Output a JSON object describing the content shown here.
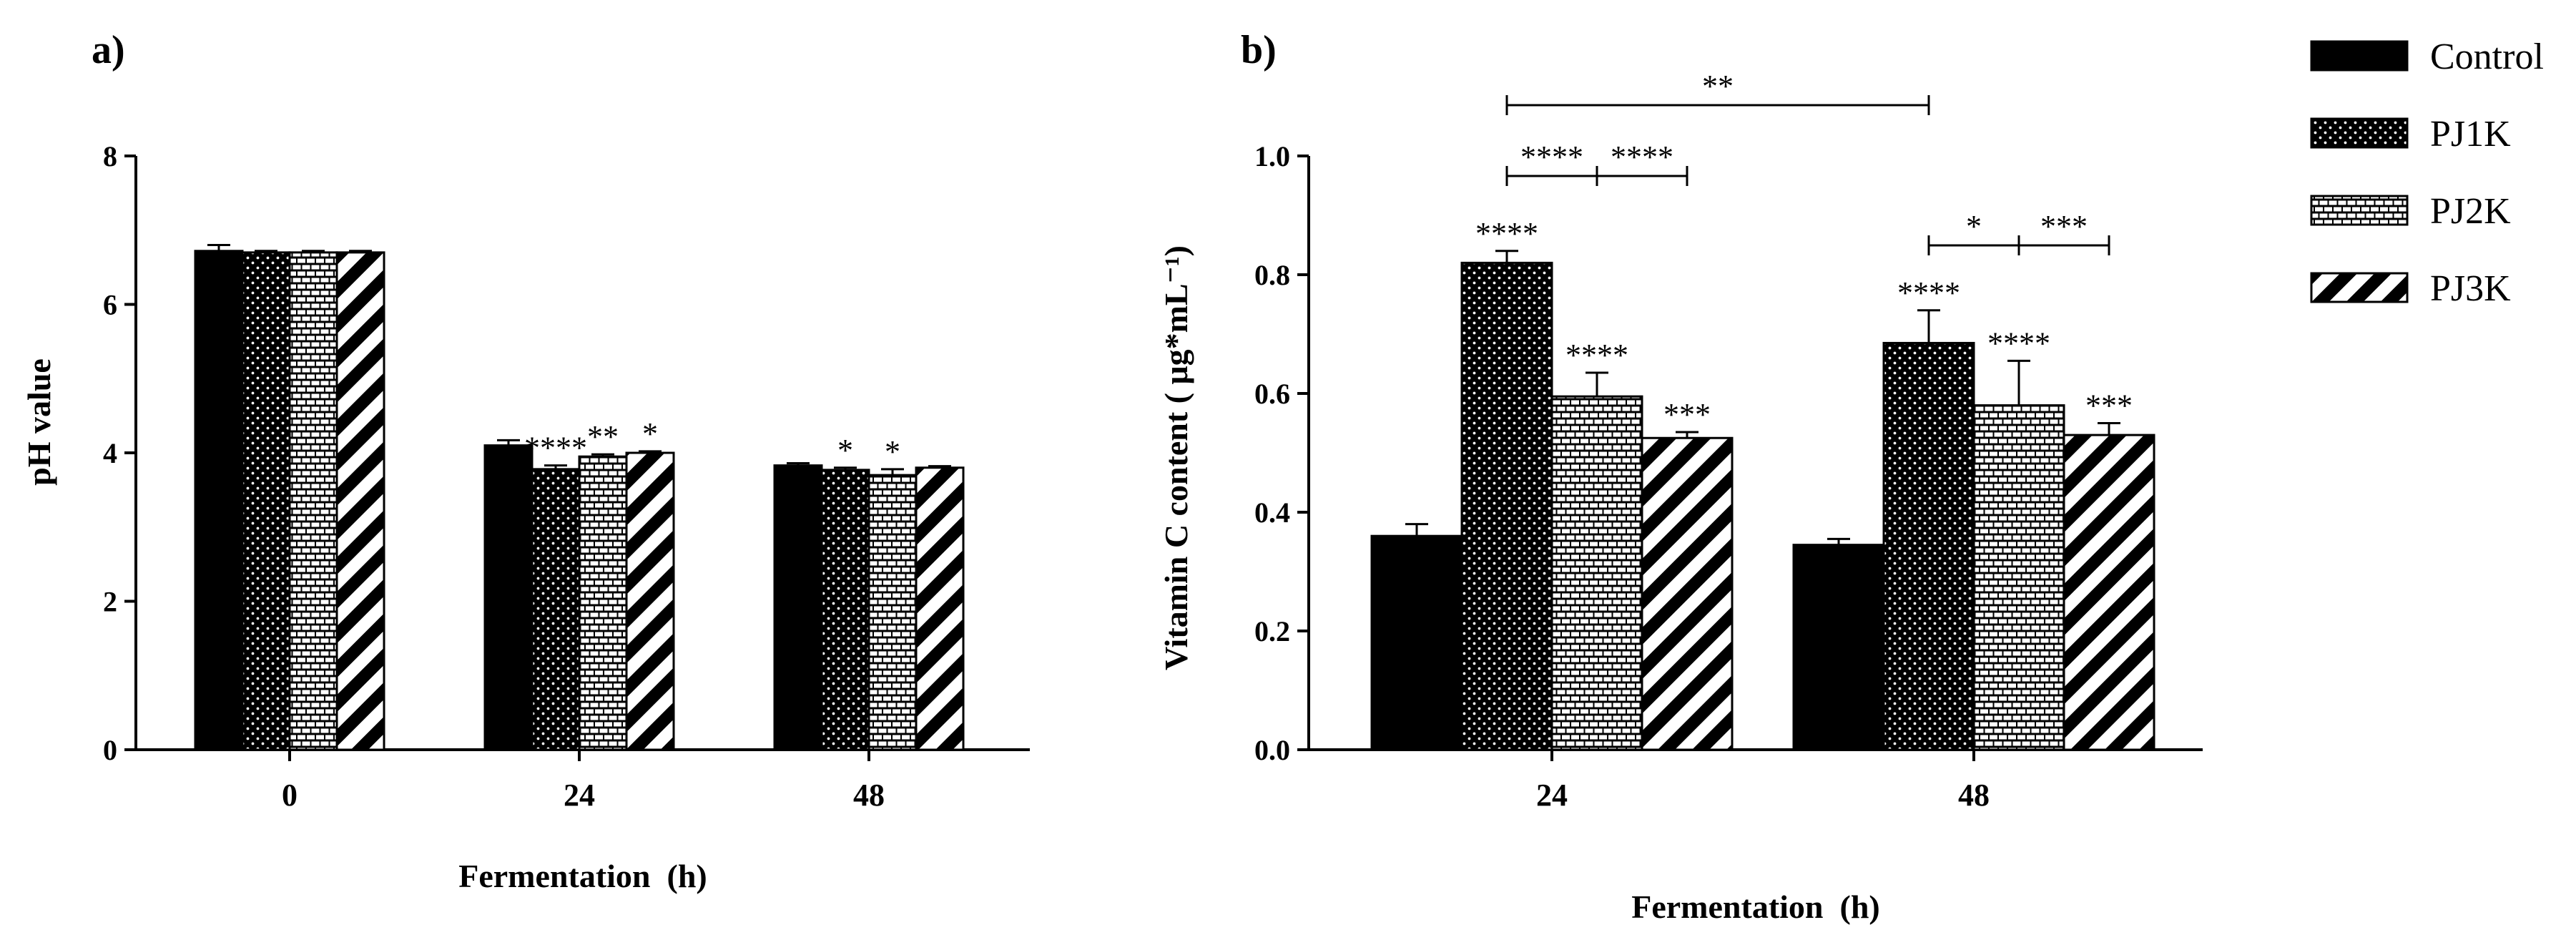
{
  "chart_data": [
    {
      "panel_label": "a)",
      "type": "bar",
      "categories": [
        "0",
        "24",
        "48"
      ],
      "xlabel": "Fermentation  (h)",
      "ylabel": "pH value",
      "ylim": [
        0,
        8
      ],
      "yticks": [
        "0",
        "2",
        "4",
        "6",
        "8"
      ],
      "series": [
        {
          "name": "Control",
          "values": [
            6.72,
            4.1,
            3.83
          ],
          "errors": [
            0.08,
            0.07,
            0.03
          ],
          "stars": [
            "",
            "",
            ""
          ]
        },
        {
          "name": "PJ1K",
          "values": [
            6.7,
            3.78,
            3.77
          ],
          "errors": [
            0.02,
            0.05,
            0.03
          ],
          "stars": [
            "",
            "****",
            "*"
          ]
        },
        {
          "name": "PJ2K",
          "values": [
            6.7,
            3.95,
            3.7
          ],
          "errors": [
            0.02,
            0.03,
            0.08
          ],
          "stars": [
            "",
            "**",
            "*"
          ]
        },
        {
          "name": "PJ3K",
          "values": [
            6.7,
            4.0,
            3.8
          ],
          "errors": [
            0.02,
            0.02,
            0.02
          ],
          "stars": [
            "",
            "*",
            ""
          ]
        }
      ]
    },
    {
      "panel_label": "b)",
      "type": "bar",
      "categories": [
        "24",
        "48"
      ],
      "xlabel": "Fermentation  (h)",
      "ylabel": "Vitamin C content ( μg*mL⁻¹)",
      "ylim": [
        0,
        1.0
      ],
      "yticks": [
        "0.0",
        "0.2",
        "0.4",
        "0.6",
        "0.8",
        "1.0"
      ],
      "series": [
        {
          "name": "Control",
          "values": [
            0.36,
            0.345
          ],
          "errors": [
            0.02,
            0.01
          ],
          "stars": [
            "",
            ""
          ]
        },
        {
          "name": "PJ1K",
          "values": [
            0.82,
            0.685
          ],
          "errors": [
            0.02,
            0.055
          ],
          "stars": [
            "****",
            "****"
          ]
        },
        {
          "name": "PJ2K",
          "values": [
            0.595,
            0.58
          ],
          "errors": [
            0.04,
            0.075
          ],
          "stars": [
            "****",
            "****"
          ]
        },
        {
          "name": "PJ3K",
          "values": [
            0.525,
            0.53
          ],
          "errors": [
            0.01,
            0.02
          ],
          "stars": [
            "***",
            "***"
          ]
        }
      ],
      "comparisons": [
        {
          "from": [
            "24",
            "PJ1K"
          ],
          "to": [
            "48",
            "PJ1K"
          ],
          "label": "**"
        },
        {
          "from": [
            "24",
            "PJ1K"
          ],
          "to": [
            "24",
            "PJ2K"
          ],
          "label": "****"
        },
        {
          "from": [
            "24",
            "PJ2K"
          ],
          "to": [
            "24",
            "PJ3K"
          ],
          "label": "****"
        },
        {
          "from": [
            "48",
            "PJ1K"
          ],
          "to": [
            "48",
            "PJ2K"
          ],
          "label": "*"
        },
        {
          "from": [
            "48",
            "PJ2K"
          ],
          "to": [
            "48",
            "PJ3K"
          ],
          "label": "***"
        }
      ]
    }
  ],
  "legend": {
    "position": "right",
    "items": [
      {
        "name": "Control",
        "pattern": "solid"
      },
      {
        "name": "PJ1K",
        "pattern": "dots"
      },
      {
        "name": "PJ2K",
        "pattern": "bricks"
      },
      {
        "name": "PJ3K",
        "pattern": "diagonal-stripes"
      }
    ]
  }
}
